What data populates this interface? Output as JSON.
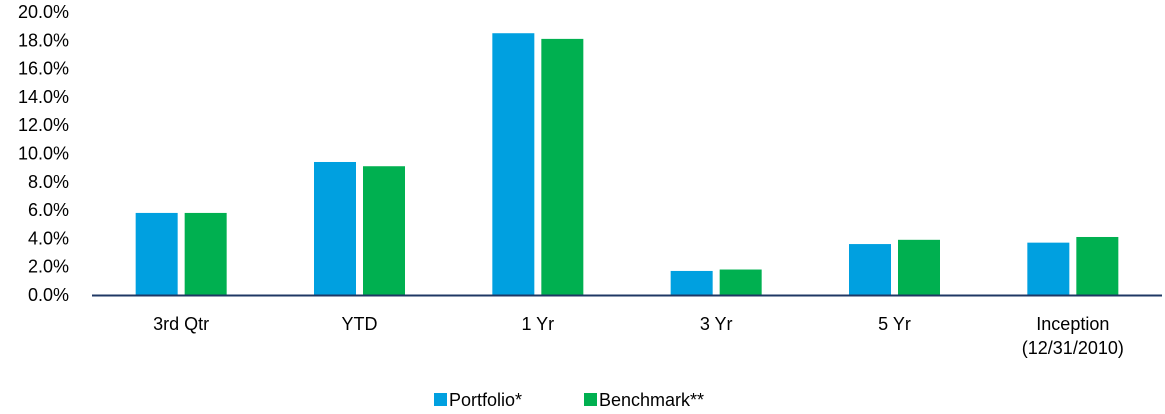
{
  "chart_data": {
    "type": "bar",
    "categories": [
      [
        "3rd Qtr"
      ],
      [
        "YTD"
      ],
      [
        "1 Yr"
      ],
      [
        "3 Yr"
      ],
      [
        "5 Yr"
      ],
      [
        "Inception",
        "(12/31/2010)"
      ]
    ],
    "series": [
      {
        "name": "Portfolio*",
        "color": "#00a0e0",
        "values": [
          5.8,
          9.4,
          18.5,
          1.7,
          3.6,
          3.7
        ]
      },
      {
        "name": "Benchmark**",
        "color": "#00b050",
        "values": [
          5.8,
          9.1,
          18.1,
          1.8,
          3.9,
          4.1
        ]
      }
    ],
    "y_ticks": [
      "0.0%",
      "2.0%",
      "4.0%",
      "6.0%",
      "8.0%",
      "10.0%",
      "12.0%",
      "14.0%",
      "16.0%",
      "18.0%",
      "20.0%"
    ],
    "ylim": [
      0,
      20
    ],
    "y_format": "percent",
    "grid": false,
    "legend": "bottom-center",
    "axis_color": "#1f3864"
  }
}
